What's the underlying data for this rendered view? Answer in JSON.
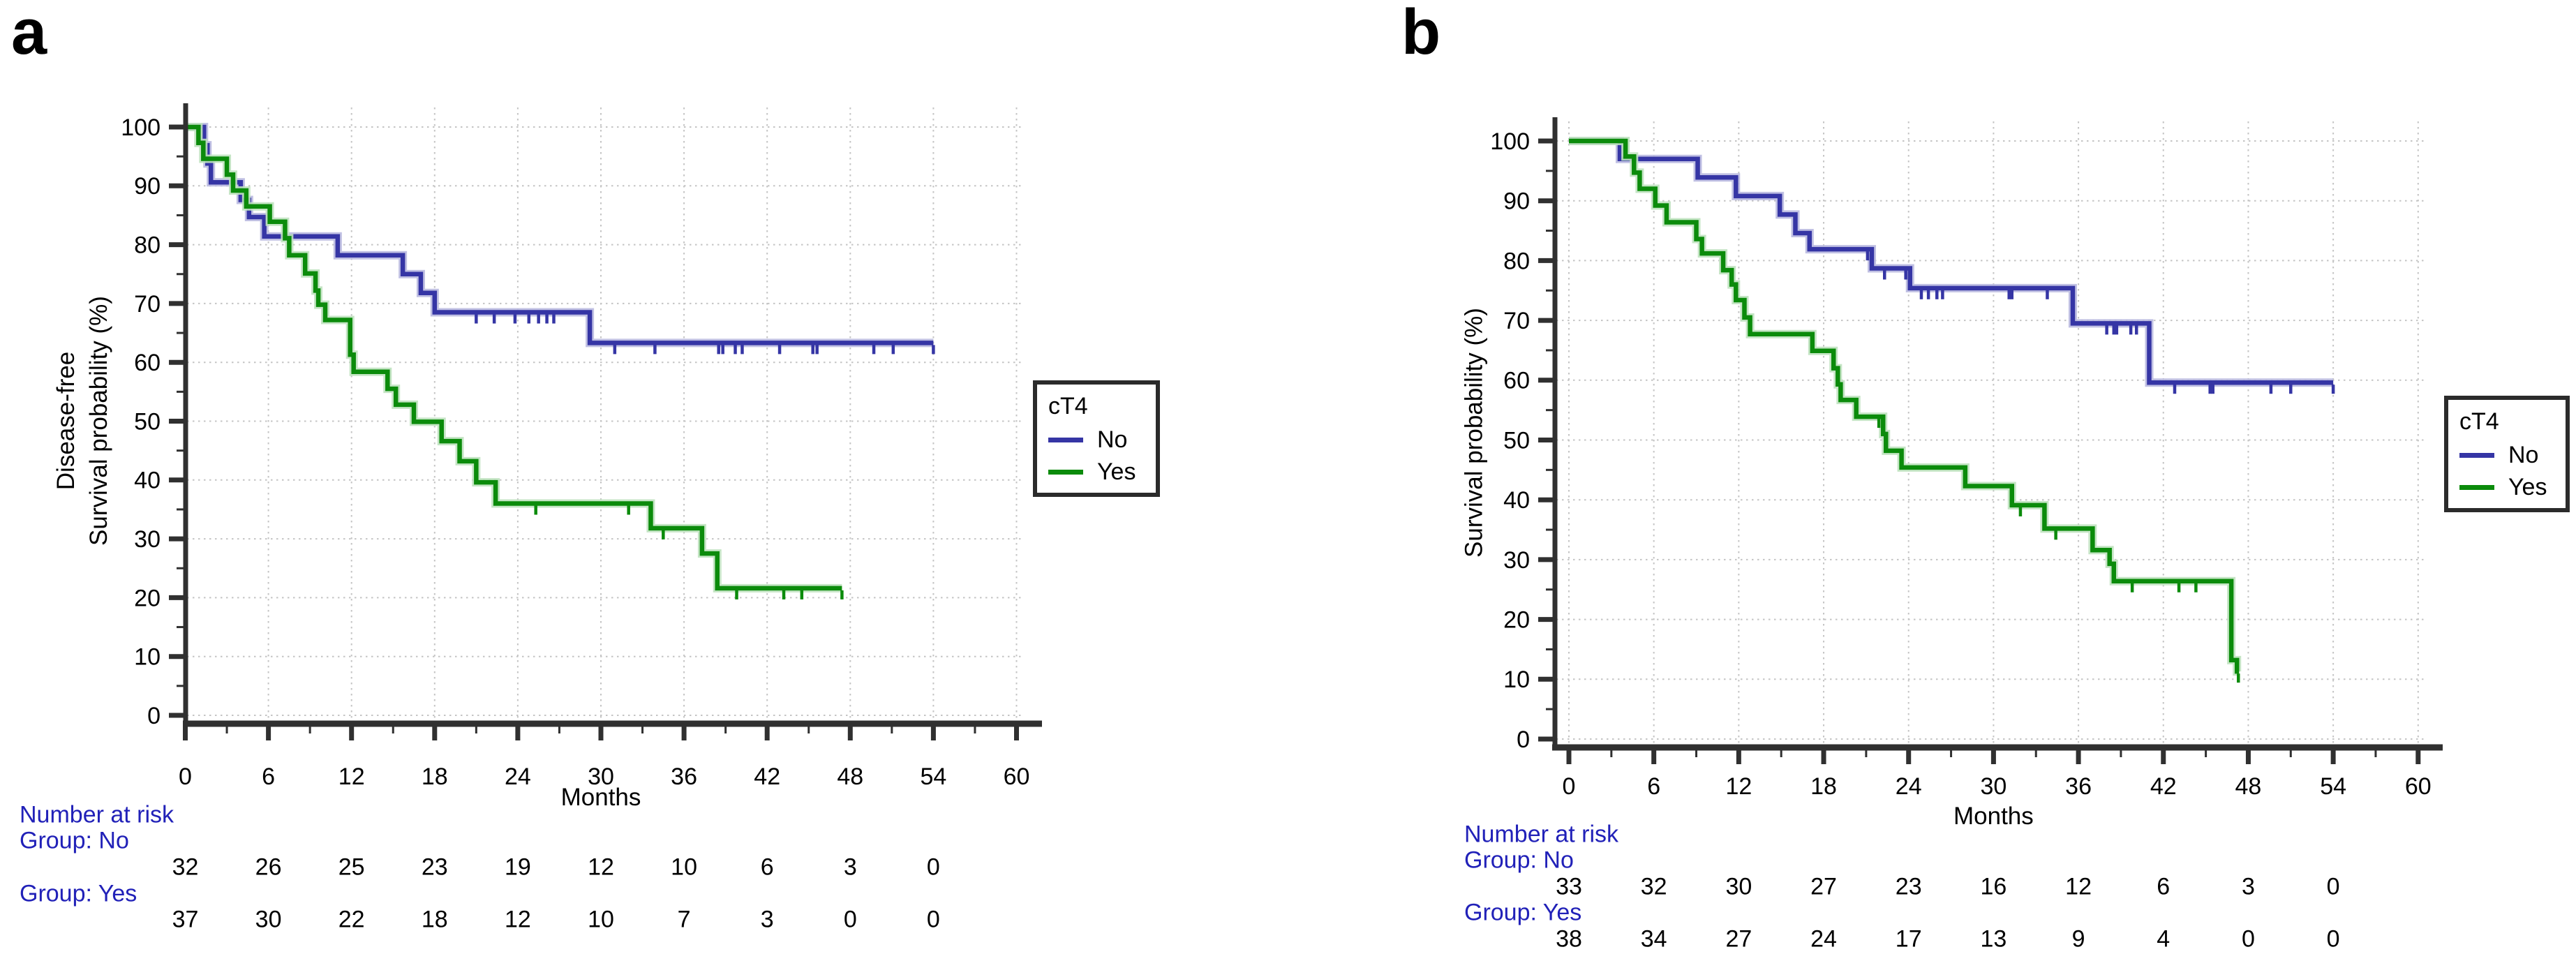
{
  "figure": {
    "panels": [
      {
        "label": "a",
        "y_axis_title_lines": [
          "Disease-free",
          "Survival probability (%)"
        ],
        "x_axis_title": "Months",
        "legend": {
          "title": "cT4",
          "items": [
            {
              "label": "No",
              "color": "#3535a5"
            },
            {
              "label": "Yes",
              "color": "#0b8b0b"
            }
          ]
        },
        "risk_table": {
          "header": "Number at risk",
          "columns_months": [
            0,
            6,
            12,
            18,
            24,
            30,
            36,
            42,
            48,
            54
          ],
          "groups": [
            {
              "label": "Group: No",
              "counts": [
                "32",
                "26",
                "25",
                "23",
                "19",
                "12",
                "10",
                "6",
                "3",
                "0"
              ]
            },
            {
              "label": "Group: Yes",
              "counts": [
                "37",
                "30",
                "22",
                "18",
                "12",
                "10",
                "7",
                "3",
                "0",
                "0"
              ]
            }
          ]
        },
        "chart_data": {
          "type": "line",
          "subtype": "kaplan-meier-step-curve",
          "title": "",
          "xlabel": "Months",
          "ylabel": "Disease-free Survival probability (%)",
          "xlim": [
            0,
            60
          ],
          "ylim": [
            0,
            100
          ],
          "xticks": [
            0,
            6,
            12,
            18,
            24,
            30,
            36,
            42,
            48,
            54,
            60
          ],
          "yticks": [
            0,
            10,
            20,
            30,
            40,
            50,
            60,
            70,
            80,
            90,
            100
          ],
          "x_minor_step": 3,
          "y_minor_step": 5,
          "grid": true,
          "legend_position": "right-outside",
          "series": [
            {
              "name": "No",
              "color": "#3535a5",
              "halo": "#b9b9e0",
              "steps": [
                [
                  0,
                  100
                ],
                [
                  1.35,
                  96.9
                ],
                [
                  1.6,
                  93.8
                ],
                [
                  1.85,
                  90.6
                ],
                [
                  4,
                  87.6
                ],
                [
                  4.6,
                  84.7
                ],
                [
                  5.7,
                  81.4
                ],
                [
                  11,
                  78.2
                ],
                [
                  15.7,
                  75
                ],
                [
                  17,
                  71.8
                ],
                [
                  18,
                  68.5
                ],
                [
                  29.2,
                  63.3
                ]
              ],
              "end": 54,
              "censors": [
                21,
                22.3,
                23.8,
                24.8,
                25.5,
                26.1,
                26.6,
                31,
                33.9,
                38.5,
                38.8,
                39.7,
                40.2,
                42.9,
                45.3,
                45.6,
                49.7,
                51.1,
                54
              ]
            },
            {
              "name": "Yes",
              "color": "#0b8b0b",
              "halo": "#bfe2bf",
              "steps": [
                [
                  0,
                  100
                ],
                [
                  0.95,
                  97.3
                ],
                [
                  1.3,
                  94.6
                ],
                [
                  3,
                  91.9
                ],
                [
                  3.45,
                  89.2
                ],
                [
                  4.4,
                  86.5
                ],
                [
                  6.1,
                  83.9
                ],
                [
                  7.2,
                  81.1
                ],
                [
                  7.5,
                  78.2
                ],
                [
                  8.65,
                  75.1
                ],
                [
                  9.4,
                  72.2
                ],
                [
                  9.6,
                  69.8
                ],
                [
                  10.1,
                  67.2
                ],
                [
                  11.9,
                  61.3
                ],
                [
                  12.15,
                  58.4
                ],
                [
                  14.6,
                  55.5
                ],
                [
                  15.2,
                  52.8
                ],
                [
                  16.5,
                  49.9
                ],
                [
                  18.5,
                  46.6
                ],
                [
                  19.8,
                  43.2
                ],
                [
                  21,
                  39.6
                ],
                [
                  22.4,
                  36
                ],
                [
                  33.6,
                  31.8
                ],
                [
                  37.3,
                  27.5
                ],
                [
                  38.4,
                  21.6
                ]
              ],
              "end": 47.4,
              "censors": [
                25.3,
                32,
                34.5,
                39.8,
                43.2,
                44.5,
                47.4
              ]
            }
          ]
        }
      },
      {
        "label": "b",
        "y_axis_title_lines": [
          "Survival probability (%)"
        ],
        "x_axis_title": "Months",
        "legend": {
          "title": "cT4",
          "items": [
            {
              "label": "No",
              "color": "#3535a5"
            },
            {
              "label": "Yes",
              "color": "#0b8b0b"
            }
          ]
        },
        "risk_table": {
          "header": "Number at risk",
          "columns_months": [
            0,
            6,
            12,
            18,
            24,
            30,
            36,
            42,
            48,
            54
          ],
          "groups": [
            {
              "label": "Group: No",
              "counts": [
                "33",
                "32",
                "30",
                "27",
                "23",
                "16",
                "12",
                "6",
                "3",
                "0"
              ]
            },
            {
              "label": "Group: Yes",
              "counts": [
                "38",
                "34",
                "27",
                "24",
                "17",
                "13",
                "9",
                "4",
                "0",
                "0"
              ]
            }
          ]
        },
        "chart_data": {
          "type": "line",
          "subtype": "kaplan-meier-step-curve",
          "title": "",
          "xlabel": "Months",
          "ylabel": "Survival probability (%)",
          "xlim": [
            0,
            60
          ],
          "ylim": [
            0,
            100
          ],
          "xticks": [
            0,
            6,
            12,
            18,
            24,
            30,
            36,
            42,
            48,
            54,
            60
          ],
          "yticks": [
            0,
            10,
            20,
            30,
            40,
            50,
            60,
            70,
            80,
            90,
            100
          ],
          "x_minor_step": 3,
          "y_minor_step": 5,
          "grid": true,
          "legend_position": "right-outside",
          "series": [
            {
              "name": "No",
              "color": "#3535a5",
              "halo": "#b9b9e0",
              "steps": [
                [
                  0,
                  100
                ],
                [
                  3.6,
                  97
                ],
                [
                  9.1,
                  93.9
                ],
                [
                  11.8,
                  90.8
                ],
                [
                  14.9,
                  87.7
                ],
                [
                  16,
                  84.6
                ],
                [
                  17,
                  81.9
                ],
                [
                  21.4,
                  78.7
                ],
                [
                  24.1,
                  75.4
                ],
                [
                  35.6,
                  69.5
                ],
                [
                  41,
                  59.6
                ]
              ],
              "end": 54,
              "censors": [
                21.1,
                22.3,
                23.8,
                24.9,
                25.4,
                26,
                26.4,
                31.1,
                31.3,
                33.8,
                38,
                38.5,
                38.7,
                39.7,
                40.1,
                42.8,
                45.3,
                45.5,
                49.6,
                51,
                54
              ]
            },
            {
              "name": "Yes",
              "color": "#0b8b0b",
              "halo": "#bfe2bf",
              "steps": [
                [
                  0,
                  100
                ],
                [
                  4,
                  97.4
                ],
                [
                  4.6,
                  94.7
                ],
                [
                  5,
                  92
                ],
                [
                  6.1,
                  89.2
                ],
                [
                  6.9,
                  86.4
                ],
                [
                  9,
                  83.6
                ],
                [
                  9.4,
                  81.2
                ],
                [
                  10.9,
                  78.4
                ],
                [
                  11.5,
                  76
                ],
                [
                  11.8,
                  73.4
                ],
                [
                  12.4,
                  70.5
                ],
                [
                  12.8,
                  67.7
                ],
                [
                  17.2,
                  64.9
                ],
                [
                  18.7,
                  62
                ],
                [
                  19,
                  59.3
                ],
                [
                  19.2,
                  56.7
                ],
                [
                  20.3,
                  53.9
                ],
                [
                  22.2,
                  51
                ],
                [
                  22.4,
                  48.2
                ],
                [
                  23.5,
                  45.4
                ],
                [
                  28,
                  42.3
                ],
                [
                  31.3,
                  39.1
                ],
                [
                  33.6,
                  35.2
                ],
                [
                  37,
                  31.6
                ],
                [
                  38.2,
                  29.3
                ],
                [
                  38.5,
                  26.4
                ],
                [
                  46.8,
                  13.2
                ],
                [
                  47.2,
                  11.3
                ]
              ],
              "end": 47.35,
              "censors": [
                21.9,
                31.9,
                34.4,
                39.8,
                43.1,
                44.3,
                47.3
              ]
            }
          ]
        }
      }
    ]
  }
}
